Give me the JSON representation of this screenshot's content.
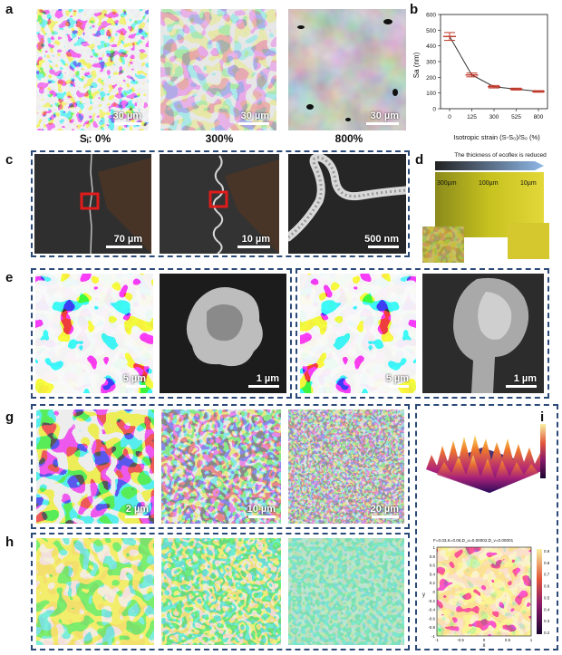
{
  "panels": {
    "a": "a",
    "b": "b",
    "c": "c",
    "d": "d",
    "e": "e",
    "g": "g",
    "h": "h",
    "i": "i"
  },
  "panel_a": {
    "captions": [
      "Sᵢ: 0%",
      "300%",
      "800%"
    ],
    "scale_bars": [
      "30 µm",
      "30 µm",
      "30 µm"
    ]
  },
  "panel_c": {
    "scale_bars": [
      "70 µm",
      "10 µm",
      "500 nm"
    ]
  },
  "panel_d": {
    "title": "The thickness of ecoflex is reduced",
    "labels": [
      "300µm",
      "100µm",
      "10µm"
    ]
  },
  "panel_e": {
    "scale_bars": [
      "5 µm",
      "1 µm",
      "5 µm",
      "1 µm"
    ]
  },
  "panel_g": {
    "scale_bars": [
      "2 µm",
      "10 µm",
      "20 µm"
    ]
  },
  "panel_i": {
    "formula": "F=0.03,K=0.06,D_u=0.00002,D_v=0.00001",
    "colorbar_ticks": [
      "0.9",
      "0.8",
      "0.7",
      "0.6",
      "0.5",
      "0.4",
      "0.3",
      "0.2"
    ],
    "y_ticks": [
      "1",
      "0.8",
      "0.6",
      "0.4",
      "0.2",
      "0",
      "-0.2",
      "-0.4",
      "-0.6",
      "-0.8",
      "-1"
    ],
    "x_ticks": [
      "-1",
      "-0.5",
      "0",
      "0.5",
      "1"
    ],
    "x_label": "x",
    "y_label": "y"
  },
  "chart_data": {
    "type": "line",
    "x": [
      "0",
      "125",
      "300",
      "525",
      "800"
    ],
    "values": [
      460,
      215,
      140,
      125,
      110
    ],
    "errors": [
      25,
      12,
      8,
      6,
      5
    ],
    "xlabel": "Isotropic strain (S-S₀)/S₀ (%)",
    "ylabel": "Sa (nm)",
    "ylim": [
      0,
      600
    ],
    "yticks": [
      "0",
      "100",
      "200",
      "300",
      "400",
      "500",
      "600"
    ],
    "color": "#c0392b"
  }
}
